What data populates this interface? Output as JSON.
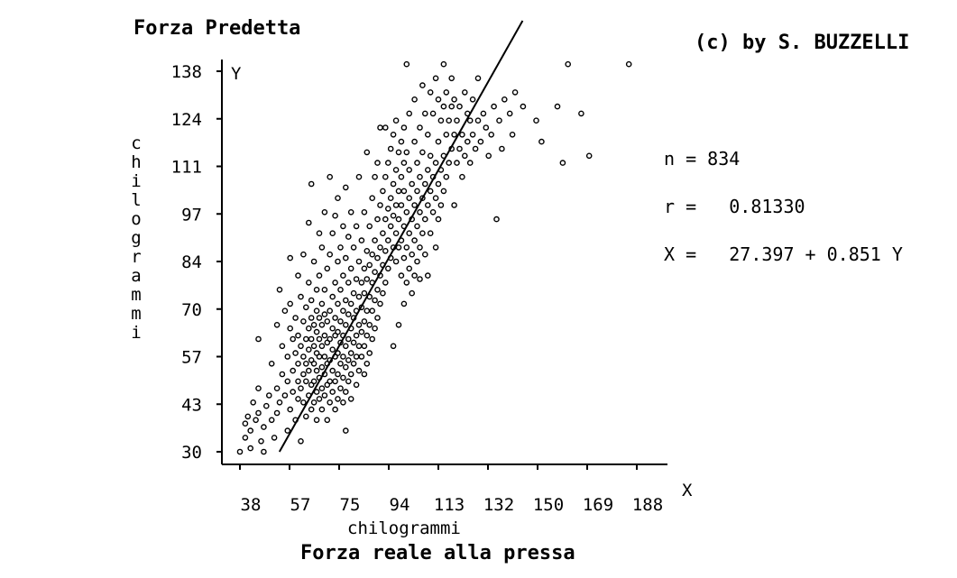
{
  "copyright": "(c) by S. BUZZELLI",
  "chart_data": {
    "type": "scatter",
    "title": "Forza Predetta",
    "y_axis_letter": "Y",
    "x_axis_letter": "X",
    "ylabel": "chilogrammi",
    "xlabel": "chilogrammi",
    "xlabel_sub": "Forza reale alla pressa",
    "x_ticks": [
      "38",
      "57",
      "75",
      "94",
      "113",
      "132",
      "150",
      "169",
      "188"
    ],
    "y_ticks": [
      "30",
      "43",
      "57",
      "70",
      "84",
      "97",
      "111",
      "124",
      "138"
    ],
    "xlim": [
      38,
      188
    ],
    "ylim": [
      30,
      138
    ],
    "stats": {
      "n_label": "n = 834",
      "r_label": "r =   0.81330",
      "eq_label": "X =   27.397 + 0.851 Y"
    },
    "regression": {
      "intercept": 27.397,
      "slope": 0.851,
      "y_from": 30,
      "y_to": 138
    },
    "points": [
      [
        38,
        30
      ],
      [
        40,
        34
      ],
      [
        40,
        38
      ],
      [
        41,
        40
      ],
      [
        42,
        31
      ],
      [
        42,
        36
      ],
      [
        43,
        44
      ],
      [
        44,
        39
      ],
      [
        45,
        41
      ],
      [
        45,
        48
      ],
      [
        45,
        62
      ],
      [
        46,
        33
      ],
      [
        47,
        30
      ],
      [
        47,
        37
      ],
      [
        48,
        43
      ],
      [
        49,
        46
      ],
      [
        50,
        39
      ],
      [
        50,
        55
      ],
      [
        51,
        34
      ],
      [
        52,
        41
      ],
      [
        52,
        48
      ],
      [
        52,
        66
      ],
      [
        53,
        44
      ],
      [
        53,
        76
      ],
      [
        54,
        52
      ],
      [
        54,
        60
      ],
      [
        55,
        46
      ],
      [
        55,
        70
      ],
      [
        56,
        36
      ],
      [
        56,
        50
      ],
      [
        56,
        57
      ],
      [
        57,
        42
      ],
      [
        57,
        65
      ],
      [
        57,
        72
      ],
      [
        57,
        85
      ],
      [
        58,
        47
      ],
      [
        58,
        53
      ],
      [
        58,
        62
      ],
      [
        59,
        39
      ],
      [
        59,
        58
      ],
      [
        59,
        68
      ],
      [
        60,
        45
      ],
      [
        60,
        50
      ],
      [
        60,
        55
      ],
      [
        60,
        63
      ],
      [
        60,
        80
      ],
      [
        61,
        33
      ],
      [
        61,
        48
      ],
      [
        61,
        60
      ],
      [
        61,
        74
      ],
      [
        62,
        44
      ],
      [
        62,
        52
      ],
      [
        62,
        57
      ],
      [
        62,
        67
      ],
      [
        62,
        86
      ],
      [
        63,
        40
      ],
      [
        63,
        50
      ],
      [
        63,
        55
      ],
      [
        63,
        62
      ],
      [
        63,
        71
      ],
      [
        64,
        46
      ],
      [
        64,
        53
      ],
      [
        64,
        59
      ],
      [
        64,
        65
      ],
      [
        64,
        78
      ],
      [
        64,
        95
      ],
      [
        65,
        42
      ],
      [
        65,
        49
      ],
      [
        65,
        56
      ],
      [
        65,
        62
      ],
      [
        65,
        68
      ],
      [
        65,
        73
      ],
      [
        65,
        106
      ],
      [
        66,
        44
      ],
      [
        66,
        50
      ],
      [
        66,
        55
      ],
      [
        66,
        60
      ],
      [
        66,
        66
      ],
      [
        66,
        84
      ],
      [
        67,
        39
      ],
      [
        67,
        47
      ],
      [
        67,
        53
      ],
      [
        67,
        58
      ],
      [
        67,
        64
      ],
      [
        67,
        70
      ],
      [
        67,
        76
      ],
      [
        68,
        45
      ],
      [
        68,
        51
      ],
      [
        68,
        57
      ],
      [
        68,
        62
      ],
      [
        68,
        68
      ],
      [
        68,
        80
      ],
      [
        68,
        92
      ],
      [
        69,
        42
      ],
      [
        69,
        48
      ],
      [
        69,
        54
      ],
      [
        69,
        60
      ],
      [
        69,
        66
      ],
      [
        69,
        72
      ],
      [
        69,
        88
      ],
      [
        70,
        46
      ],
      [
        70,
        52
      ],
      [
        70,
        57
      ],
      [
        70,
        63
      ],
      [
        70,
        69
      ],
      [
        70,
        76
      ],
      [
        70,
        98
      ],
      [
        71,
        39
      ],
      [
        71,
        49
      ],
      [
        71,
        55
      ],
      [
        71,
        61
      ],
      [
        71,
        67
      ],
      [
        71,
        82
      ],
      [
        72,
        44
      ],
      [
        72,
        50
      ],
      [
        72,
        56
      ],
      [
        72,
        62
      ],
      [
        72,
        70
      ],
      [
        72,
        86
      ],
      [
        72,
        108
      ],
      [
        73,
        47
      ],
      [
        73,
        53
      ],
      [
        73,
        59
      ],
      [
        73,
        65
      ],
      [
        73,
        74
      ],
      [
        73,
        92
      ],
      [
        74,
        42
      ],
      [
        74,
        50
      ],
      [
        74,
        57
      ],
      [
        74,
        63
      ],
      [
        74,
        68
      ],
      [
        74,
        78
      ],
      [
        74,
        97
      ],
      [
        75,
        45
      ],
      [
        75,
        52
      ],
      [
        75,
        58
      ],
      [
        75,
        64
      ],
      [
        75,
        72
      ],
      [
        75,
        84
      ],
      [
        75,
        102
      ],
      [
        76,
        48
      ],
      [
        76,
        55
      ],
      [
        76,
        61
      ],
      [
        76,
        67
      ],
      [
        76,
        76
      ],
      [
        76,
        88
      ],
      [
        77,
        44
      ],
      [
        77,
        51
      ],
      [
        77,
        57
      ],
      [
        77,
        63
      ],
      [
        77,
        70
      ],
      [
        77,
        80
      ],
      [
        77,
        94
      ],
      [
        78,
        36
      ],
      [
        78,
        47
      ],
      [
        78,
        54
      ],
      [
        78,
        60
      ],
      [
        78,
        66
      ],
      [
        78,
        73
      ],
      [
        78,
        85
      ],
      [
        78,
        105
      ],
      [
        79,
        50
      ],
      [
        79,
        56
      ],
      [
        79,
        62
      ],
      [
        79,
        69
      ],
      [
        79,
        78
      ],
      [
        79,
        91
      ],
      [
        80,
        45
      ],
      [
        80,
        52
      ],
      [
        80,
        58
      ],
      [
        80,
        65
      ],
      [
        80,
        72
      ],
      [
        80,
        82
      ],
      [
        80,
        98
      ],
      [
        81,
        55
      ],
      [
        81,
        61
      ],
      [
        81,
        68
      ],
      [
        81,
        75
      ],
      [
        81,
        88
      ],
      [
        82,
        49
      ],
      [
        82,
        57
      ],
      [
        82,
        63
      ],
      [
        82,
        70
      ],
      [
        82,
        79
      ],
      [
        82,
        94
      ],
      [
        83,
        53
      ],
      [
        83,
        60
      ],
      [
        83,
        66
      ],
      [
        83,
        74
      ],
      [
        83,
        84
      ],
      [
        83,
        108
      ],
      [
        84,
        57
      ],
      [
        84,
        64
      ],
      [
        84,
        71
      ],
      [
        84,
        78
      ],
      [
        84,
        90
      ],
      [
        85,
        52
      ],
      [
        85,
        60
      ],
      [
        85,
        67
      ],
      [
        85,
        75
      ],
      [
        85,
        82
      ],
      [
        85,
        98
      ],
      [
        86,
        55
      ],
      [
        86,
        63
      ],
      [
        86,
        70
      ],
      [
        86,
        79
      ],
      [
        86,
        87
      ],
      [
        86,
        115
      ],
      [
        87,
        58
      ],
      [
        87,
        66
      ],
      [
        87,
        74
      ],
      [
        87,
        83
      ],
      [
        87,
        94
      ],
      [
        88,
        62
      ],
      [
        88,
        70
      ],
      [
        88,
        78
      ],
      [
        88,
        86
      ],
      [
        88,
        102
      ],
      [
        89,
        65
      ],
      [
        89,
        73
      ],
      [
        89,
        81
      ],
      [
        89,
        90
      ],
      [
        89,
        108
      ],
      [
        90,
        68
      ],
      [
        90,
        76
      ],
      [
        90,
        85
      ],
      [
        90,
        96
      ],
      [
        90,
        112
      ],
      [
        91,
        72
      ],
      [
        91,
        80
      ],
      [
        91,
        88
      ],
      [
        91,
        100
      ],
      [
        91,
        122
      ],
      [
        92,
        75
      ],
      [
        92,
        83
      ],
      [
        92,
        92
      ],
      [
        92,
        104
      ],
      [
        93,
        78
      ],
      [
        93,
        87
      ],
      [
        93,
        96
      ],
      [
        93,
        108
      ],
      [
        93,
        122
      ],
      [
        94,
        82
      ],
      [
        94,
        90
      ],
      [
        94,
        99
      ],
      [
        94,
        112
      ],
      [
        95,
        85
      ],
      [
        95,
        94
      ],
      [
        95,
        102
      ],
      [
        95,
        116
      ],
      [
        96,
        60
      ],
      [
        96,
        88
      ],
      [
        96,
        97
      ],
      [
        96,
        106
      ],
      [
        96,
        120
      ],
      [
        97,
        84
      ],
      [
        97,
        92
      ],
      [
        97,
        100
      ],
      [
        97,
        110
      ],
      [
        97,
        124
      ],
      [
        98,
        66
      ],
      [
        98,
        88
      ],
      [
        98,
        96
      ],
      [
        98,
        104
      ],
      [
        98,
        115
      ],
      [
        99,
        80
      ],
      [
        99,
        90
      ],
      [
        99,
        100
      ],
      [
        99,
        108
      ],
      [
        99,
        118
      ],
      [
        100,
        72
      ],
      [
        100,
        85
      ],
      [
        100,
        94
      ],
      [
        100,
        104
      ],
      [
        100,
        112
      ],
      [
        100,
        122
      ],
      [
        101,
        78
      ],
      [
        101,
        88
      ],
      [
        101,
        98
      ],
      [
        101,
        115
      ],
      [
        101,
        140
      ],
      [
        102,
        82
      ],
      [
        102,
        92
      ],
      [
        102,
        102
      ],
      [
        102,
        110
      ],
      [
        102,
        126
      ],
      [
        103,
        75
      ],
      [
        103,
        86
      ],
      [
        103,
        96
      ],
      [
        103,
        106
      ],
      [
        104,
        80
      ],
      [
        104,
        90
      ],
      [
        104,
        100
      ],
      [
        104,
        118
      ],
      [
        104,
        130
      ],
      [
        105,
        84
      ],
      [
        105,
        94
      ],
      [
        105,
        104
      ],
      [
        105,
        112
      ],
      [
        106,
        79
      ],
      [
        106,
        88
      ],
      [
        106,
        98
      ],
      [
        106,
        108
      ],
      [
        106,
        122
      ],
      [
        107,
        92
      ],
      [
        107,
        102
      ],
      [
        107,
        115
      ],
      [
        107,
        134
      ],
      [
        108,
        86
      ],
      [
        108,
        96
      ],
      [
        108,
        106
      ],
      [
        108,
        126
      ],
      [
        109,
        80
      ],
      [
        109,
        100
      ],
      [
        109,
        110
      ],
      [
        109,
        120
      ],
      [
        110,
        92
      ],
      [
        110,
        104
      ],
      [
        110,
        114
      ],
      [
        110,
        132
      ],
      [
        111,
        98
      ],
      [
        111,
        108
      ],
      [
        111,
        126
      ],
      [
        112,
        88
      ],
      [
        112,
        102
      ],
      [
        112,
        112
      ],
      [
        112,
        136
      ],
      [
        113,
        96
      ],
      [
        113,
        106
      ],
      [
        113,
        118
      ],
      [
        113,
        130
      ],
      [
        114,
        100
      ],
      [
        114,
        110
      ],
      [
        114,
        124
      ],
      [
        115,
        104
      ],
      [
        115,
        114
      ],
      [
        115,
        128
      ],
      [
        115,
        140
      ],
      [
        116,
        108
      ],
      [
        116,
        120
      ],
      [
        116,
        132
      ],
      [
        117,
        112
      ],
      [
        117,
        124
      ],
      [
        118,
        116
      ],
      [
        118,
        128
      ],
      [
        118,
        136
      ],
      [
        119,
        100
      ],
      [
        119,
        120
      ],
      [
        119,
        130
      ],
      [
        120,
        112
      ],
      [
        120,
        124
      ],
      [
        121,
        116
      ],
      [
        121,
        128
      ],
      [
        122,
        108
      ],
      [
        122,
        120
      ],
      [
        123,
        114
      ],
      [
        123,
        132
      ],
      [
        124,
        118
      ],
      [
        124,
        126
      ],
      [
        125,
        112
      ],
      [
        125,
        124
      ],
      [
        126,
        120
      ],
      [
        126,
        130
      ],
      [
        127,
        116
      ],
      [
        128,
        124
      ],
      [
        128,
        136
      ],
      [
        129,
        118
      ],
      [
        130,
        126
      ],
      [
        131,
        122
      ],
      [
        132,
        114
      ],
      [
        133,
        120
      ],
      [
        134,
        128
      ],
      [
        135,
        96
      ],
      [
        136,
        124
      ],
      [
        137,
        116
      ],
      [
        138,
        130
      ],
      [
        140,
        126
      ],
      [
        141,
        120
      ],
      [
        142,
        132
      ],
      [
        145,
        128
      ],
      [
        150,
        124
      ],
      [
        152,
        118
      ],
      [
        158,
        128
      ],
      [
        160,
        112
      ],
      [
        162,
        140
      ],
      [
        167,
        126
      ],
      [
        170,
        114
      ],
      [
        185,
        140
      ]
    ]
  }
}
